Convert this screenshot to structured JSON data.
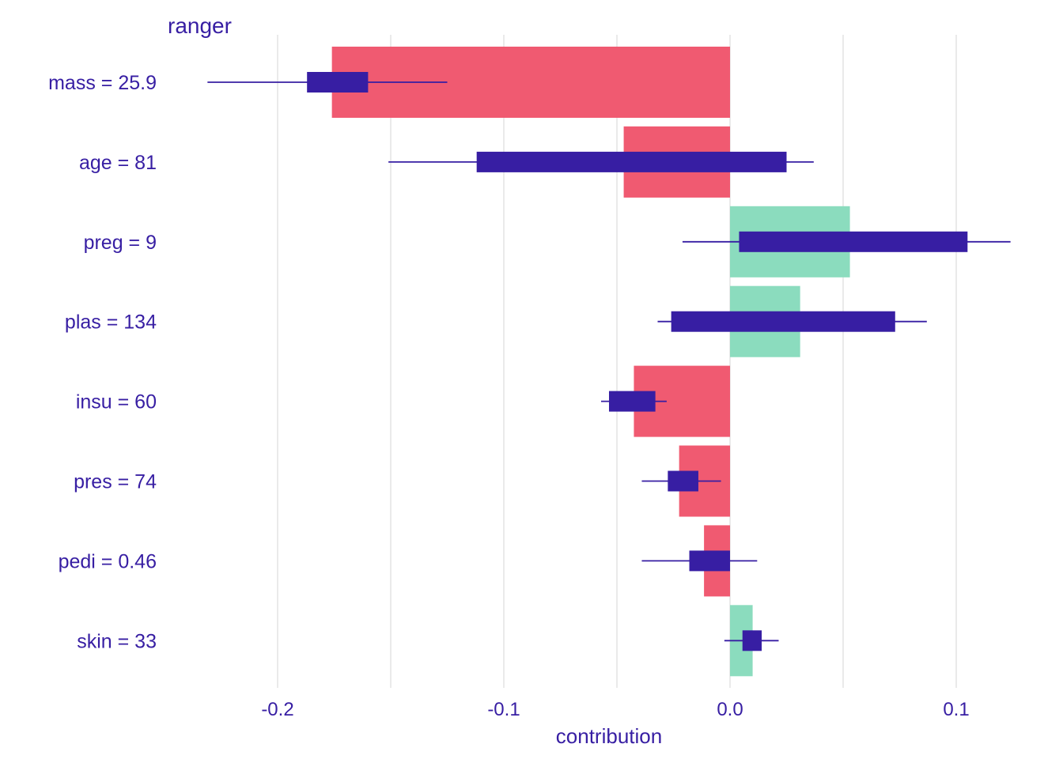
{
  "chart_data": {
    "type": "bar",
    "title": "ranger",
    "xlabel": "contribution",
    "ylabel": "",
    "xlim": [
      -0.2,
      0.1
    ],
    "xticks": [
      -0.2,
      -0.1,
      0.0,
      0.1
    ],
    "xtick_labels": [
      "-0.2",
      "-0.1",
      "0.0",
      "0.1"
    ],
    "minor_gridlines": [
      -0.15,
      -0.05,
      0.05
    ],
    "grid": true,
    "categories": [
      "mass = 25.9",
      "age = 81",
      "preg = 9",
      "plas = 134",
      "insu = 60",
      "pres = 74",
      "pedi = 0.46",
      "skin = 33"
    ],
    "values": [
      -0.176,
      -0.047,
      0.053,
      0.031,
      -0.0425,
      -0.0225,
      -0.0115,
      0.01
    ],
    "boxplots": [
      {
        "whisker_low": -0.231,
        "q1": -0.187,
        "q3": -0.16,
        "whisker_high": -0.125
      },
      {
        "whisker_low": -0.151,
        "q1": -0.112,
        "q3": 0.025,
        "whisker_high": 0.037
      },
      {
        "whisker_low": -0.021,
        "q1": 0.004,
        "q3": 0.105,
        "whisker_high": 0.124
      },
      {
        "whisker_low": -0.032,
        "q1": -0.026,
        "q3": 0.073,
        "whisker_high": 0.087
      },
      {
        "whisker_low": -0.057,
        "q1": -0.0535,
        "q3": -0.033,
        "whisker_high": -0.028
      },
      {
        "whisker_low": -0.039,
        "q1": -0.0275,
        "q3": -0.014,
        "whisker_high": -0.004
      },
      {
        "whisker_low": -0.039,
        "q1": -0.018,
        "q3": 0.0,
        "whisker_high": 0.012
      },
      {
        "whisker_low": -0.0025,
        "q1": 0.0055,
        "q3": 0.014,
        "whisker_high": 0.0215
      }
    ],
    "colors": {
      "negative": "#f05a71",
      "positive": "#8bdcbe",
      "boxplot": "#371ea3",
      "text": "#371ea3",
      "grid": "#e5e5e5"
    }
  }
}
